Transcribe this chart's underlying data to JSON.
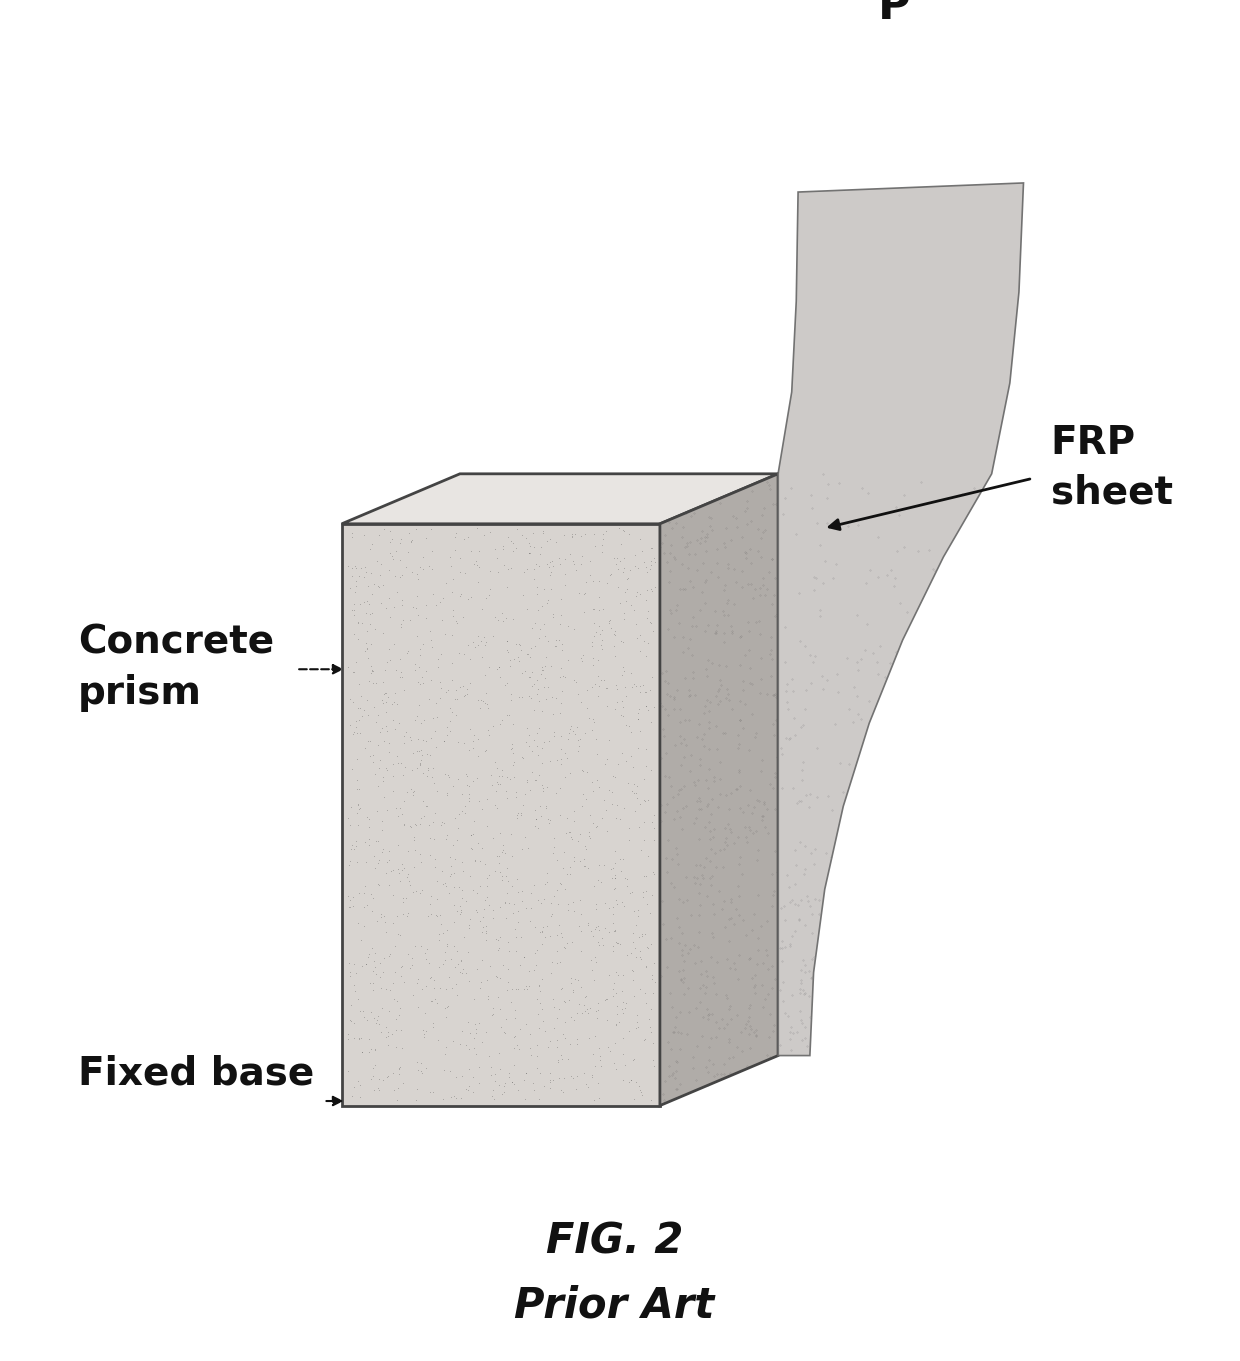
{
  "title": "FIG. 2",
  "subtitle": "Prior Art",
  "label_concrete": "Concrete\nprism",
  "label_fixed": "Fixed base",
  "label_frp": "FRP\nsheet",
  "label_p": "P",
  "bg_color": "#ffffff",
  "box_front_color": "#d8d4d0",
  "box_top_color": "#e8e5e2",
  "box_right_color": "#b0aca8",
  "frp_main_color": "#c8c5c2",
  "frp_shadow_color": "#a8a5a2",
  "arrow_color": "#111111",
  "label_color": "#111111",
  "font_size_labels": 28,
  "font_size_title": 30,
  "font_size_p": 32
}
